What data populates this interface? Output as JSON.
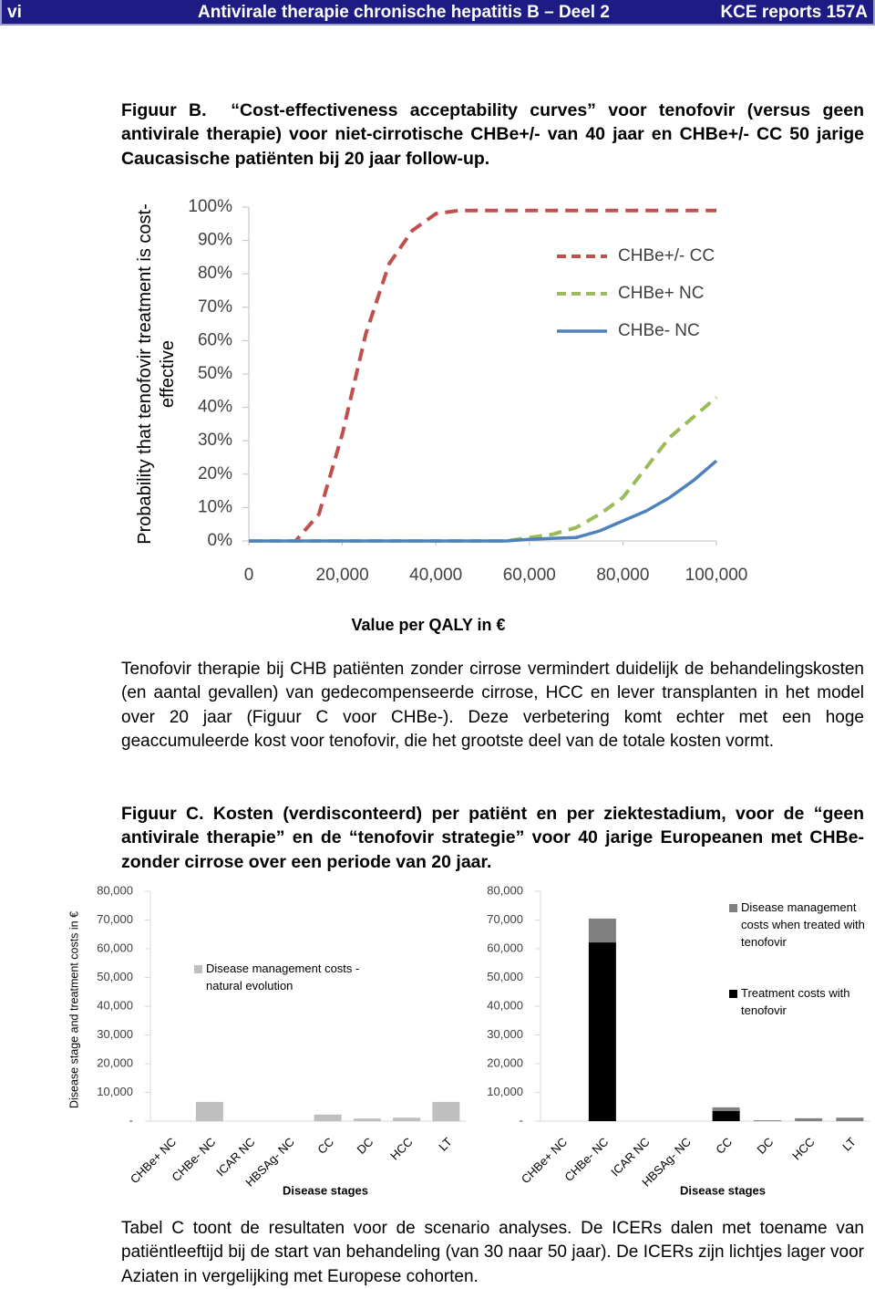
{
  "header": {
    "page": "vi",
    "title": "Antivirale therapie chronische hepatitis B – Deel 2",
    "report": "KCE reports 157A"
  },
  "figure_b": {
    "label": "Figuur B.",
    "text": "“Cost-effectiveness acceptability curves” voor tenofovir (versus geen antivirale therapie) voor niet-cirrotische CHBe+/- van 40 jaar en CHBe+/- CC 50 jarige Caucasische patiënten bij 20 jaar follow-up."
  },
  "paragraph_1": "Tenofovir therapie bij CHB patiënten zonder cirrose vermindert duidelijk de behandelingskosten (en aantal gevallen) van gedecompenseerde cirrose, HCC en lever transplanten in het model over 20 jaar (Figuur C voor CHBe-). Deze verbetering komt echter met een hoge geaccumuleerde kost voor tenofovir, die het grootste deel van de totale kosten vormt.",
  "figure_c": {
    "label": "Figuur C.",
    "text": "Kosten (verdisconteerd) per patiënt en per ziektestadium, voor de “geen antivirale therapie” en de “tenofovir strategie” voor 40 jarige Europeanen met CHBe- zonder cirrose over een periode van 20 jaar."
  },
  "paragraph_2": "Tabel C toont de resultaten voor de scenario analyses. De ICERs dalen met toename van patiëntleeftijd bij de start van behandeling (van 30 naar 50 jaar). De ICERs zijn lichtjes lager voor Aziaten in vergelijking met Europese cohorten.",
  "chart_data": [
    {
      "type": "line",
      "x_label": "Value per QALY in €",
      "y_label": "Probability that tenofovir treatment is cost-effective",
      "x": [
        0,
        5000,
        10000,
        15000,
        20000,
        25000,
        30000,
        35000,
        40000,
        45000,
        50000,
        55000,
        60000,
        65000,
        70000,
        75000,
        80000,
        85000,
        90000,
        95000,
        100000
      ],
      "xlim": [
        0,
        100000
      ],
      "xticks": [
        0,
        {
          "value": 20000,
          "label": "20,000"
        },
        {
          "value": 40000,
          "label": "40,000"
        },
        {
          "value": 60000,
          "label": "60,000"
        },
        {
          "value": 80000,
          "label": "80,000"
        },
        {
          "value": 100000,
          "label": "100,000"
        }
      ],
      "ylim": [
        0,
        100
      ],
      "yticks": [
        {
          "value": 0,
          "label": "0%"
        },
        {
          "value": 10,
          "label": "10%"
        },
        {
          "value": 20,
          "label": "20%"
        },
        {
          "value": 30,
          "label": "30%"
        },
        {
          "value": 40,
          "label": "40%"
        },
        {
          "value": 50,
          "label": "50%"
        },
        {
          "value": 60,
          "label": "60%"
        },
        {
          "value": 70,
          "label": "70%"
        },
        {
          "value": 80,
          "label": "80%"
        },
        {
          "value": 90,
          "label": "90%"
        },
        {
          "value": 100,
          "label": "100%"
        }
      ],
      "series": [
        {
          "name": "CHBe+/- CC",
          "color": "#c0504d",
          "style": "dashed",
          "values": [
            0,
            0,
            0,
            8,
            32,
            62,
            83,
            93,
            98,
            99,
            99,
            99,
            99,
            99,
            99,
            99,
            99,
            99,
            99,
            99,
            99
          ]
        },
        {
          "name": "CHBe+ NC",
          "color": "#9bbb59",
          "style": "dashed",
          "values": [
            0,
            0,
            0,
            0,
            0,
            0,
            0,
            0,
            0,
            0,
            0,
            0,
            1,
            2,
            4,
            8,
            13,
            22,
            31,
            37,
            43
          ]
        },
        {
          "name": "CHBe- NC",
          "color": "#4f81bd",
          "style": "solid",
          "values": [
            0,
            0,
            0,
            0,
            0,
            0,
            0,
            0,
            0,
            0,
            0,
            0,
            0.5,
            0.8,
            1,
            3,
            6,
            9,
            13,
            18,
            24
          ]
        }
      ]
    },
    {
      "type": "bar",
      "y_label": "Disease stage and treatment costs in €",
      "x_label": "Disease stages",
      "categories": [
        "CHBe+ NC",
        "CHBe- NC",
        "ICAR NC",
        "HBSAg- NC",
        "CC",
        "DC",
        "HCC",
        "LT"
      ],
      "ylim": [
        0,
        80000
      ],
      "yticks": [
        {
          "value": 0,
          "label": "-"
        },
        {
          "value": 10000,
          "label": "10,000"
        },
        {
          "value": 20000,
          "label": "20,000"
        },
        {
          "value": 30000,
          "label": "30,000"
        },
        {
          "value": 40000,
          "label": "40,000"
        },
        {
          "value": 50000,
          "label": "50,000"
        },
        {
          "value": 60000,
          "label": "60,000"
        },
        {
          "value": 70000,
          "label": "70,000"
        },
        {
          "value": 80000,
          "label": "80,000"
        }
      ],
      "series": [
        {
          "name": "Disease management costs - natural evolution",
          "color": "#bfbfbf",
          "values": [
            0,
            6700,
            0,
            0,
            2300,
            900,
            1200,
            6700
          ]
        }
      ]
    },
    {
      "type": "bar",
      "stacked": true,
      "x_label": "Disease stages",
      "categories": [
        "CHBe+ NC",
        "CHBe- NC",
        "ICAR NC",
        "HBSAg- NC",
        "CC",
        "DC",
        "HCC",
        "LT"
      ],
      "ylim": [
        0,
        80000
      ],
      "yticks": [
        {
          "value": 0,
          "label": "-"
        },
        {
          "value": 10000,
          "label": "10,000"
        },
        {
          "value": 20000,
          "label": "20,000"
        },
        {
          "value": 30000,
          "label": "30,000"
        },
        {
          "value": 40000,
          "label": "40,000"
        },
        {
          "value": 50000,
          "label": "50,000"
        },
        {
          "value": 60000,
          "label": "60,000"
        },
        {
          "value": 70000,
          "label": "70,000"
        },
        {
          "value": 80000,
          "label": "80,000"
        }
      ],
      "series": [
        {
          "name": "Treatment costs with tenofovir",
          "color": "#000000",
          "values": [
            0,
            62200,
            0,
            0,
            3500,
            0,
            0,
            0
          ]
        },
        {
          "name": "Disease management costs when treated with tenofovir",
          "color": "#808080",
          "values": [
            0,
            8300,
            0,
            0,
            1300,
            300,
            1000,
            1200
          ]
        }
      ]
    }
  ]
}
